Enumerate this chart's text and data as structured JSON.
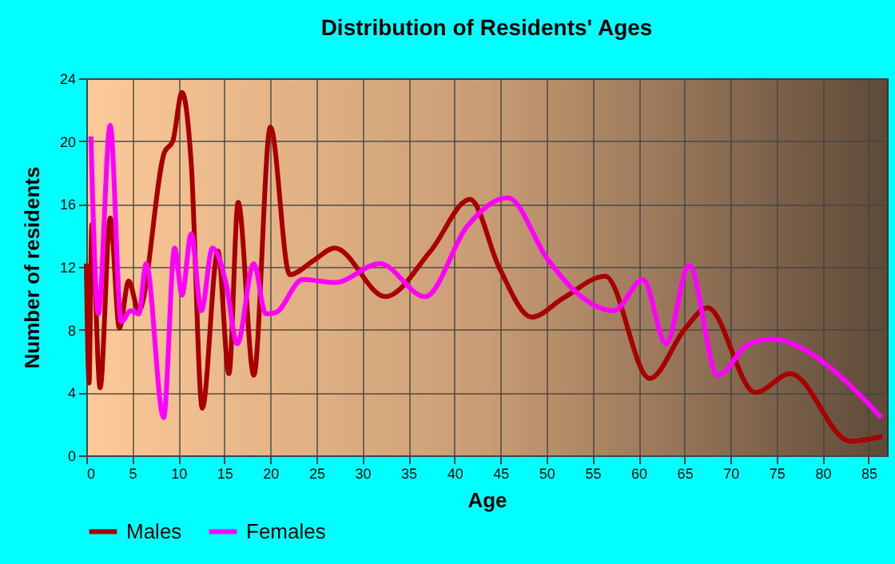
{
  "chart_data": {
    "type": "line",
    "title": "Distribution of Residents' Ages",
    "xlabel": "Age",
    "ylabel": "Number of residents",
    "xlim": [
      0,
      87
    ],
    "ylim": [
      0,
      24
    ],
    "xticks": [
      0,
      5,
      10,
      15,
      20,
      25,
      30,
      35,
      40,
      45,
      50,
      55,
      60,
      65,
      70,
      75,
      80,
      85
    ],
    "yticks": [
      0,
      4,
      8,
      12,
      16,
      20,
      24
    ],
    "grid": true,
    "legend": "bottom",
    "series": [
      {
        "name": "Males",
        "color": "#a80000",
        "x": [
          0,
          0.3,
          0.6,
          1.5,
          2.6,
          3.6,
          4.6,
          5.7,
          8.5,
          9.4,
          10.4,
          11.4,
          12.6,
          14.3,
          15.5,
          16.5,
          18.2,
          20,
          22.1,
          24.7,
          27,
          32.5,
          37.4,
          41.7,
          44.9,
          48.4,
          51.8,
          56.4,
          61.2,
          65.1,
          67.5,
          72.7,
          76.5,
          83,
          86.5
        ],
        "values": [
          12.2,
          4.6,
          14.7,
          4.3,
          15.1,
          8.1,
          11.1,
          9.2,
          19.3,
          20,
          23.1,
          18.6,
          3,
          13,
          5.2,
          16.1,
          5.1,
          20.9,
          11.5,
          12.4,
          13.2,
          10.1,
          13,
          16.3,
          11.9,
          8.8,
          10,
          11.4,
          4.9,
          8.1,
          9.4,
          4,
          5.2,
          0.9,
          1.2
        ]
      },
      {
        "name": "Females",
        "color": "#ff00ff",
        "x": [
          0.5,
          1.3,
          2.6,
          3.8,
          4.8,
          5.7,
          6.5,
          8.4,
          9.6,
          10.4,
          11.4,
          12.5,
          13.7,
          15.2,
          16.4,
          18.2,
          19.5,
          20.6,
          23.5,
          27,
          31.9,
          36.8,
          41.4,
          45.8,
          50.1,
          53,
          57.3,
          60.5,
          63,
          65.5,
          68.6,
          72,
          74.6,
          78.4,
          81.8,
          86.4
        ],
        "values": [
          20.3,
          9,
          21,
          8.5,
          9.2,
          9,
          12.2,
          2.4,
          13.2,
          10.2,
          14.1,
          9.2,
          13.2,
          10.9,
          7.1,
          12.2,
          9,
          9.1,
          11.2,
          11,
          12.2,
          10.1,
          14.6,
          16.4,
          12.5,
          10.5,
          9.2,
          11.2,
          7.1,
          12.1,
          5.1,
          7.1,
          7.4,
          6.6,
          5.1,
          2.4
        ]
      }
    ]
  }
}
